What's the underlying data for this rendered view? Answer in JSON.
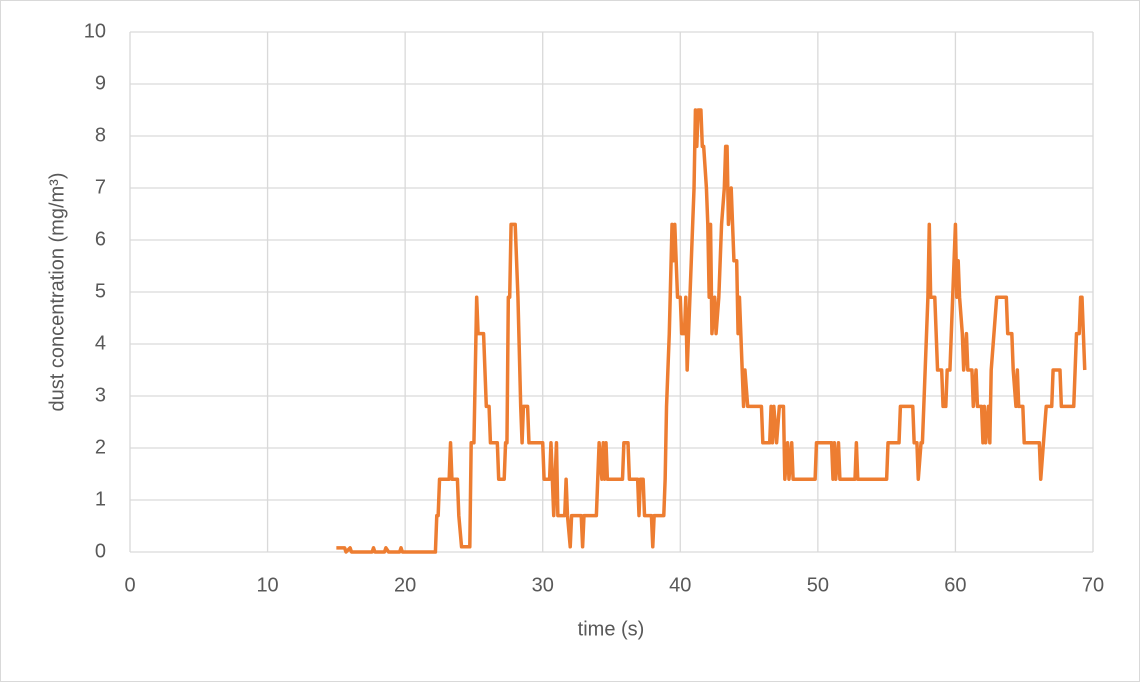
{
  "chart_data": {
    "type": "line",
    "xlabel": "time (s)",
    "ylabel": "dust concentration (mg/m³)",
    "xlim": [
      0,
      70
    ],
    "xticks": [
      0,
      10,
      20,
      30,
      40,
      50,
      60,
      70
    ],
    "ylim": [
      0,
      10
    ],
    "yticks": [
      0,
      1,
      2,
      3,
      4,
      5,
      6,
      7,
      8,
      9,
      10
    ],
    "grid": true,
    "x": [
      15.0,
      15.6,
      15.7,
      16.0,
      16.1,
      17.6,
      17.7,
      17.8,
      18.5,
      18.6,
      18.8,
      19.6,
      19.7,
      19.8,
      22.2,
      22.3,
      22.4,
      22.5,
      23.2,
      23.3,
      23.4,
      23.8,
      23.9,
      24.1,
      24.7,
      24.8,
      25.0,
      25.1,
      25.2,
      25.3,
      25.7,
      25.9,
      26.1,
      26.2,
      26.7,
      26.8,
      27.2,
      27.3,
      27.4,
      27.5,
      27.6,
      27.7,
      28.0,
      28.2,
      28.4,
      28.5,
      28.6,
      28.9,
      29.0,
      30.0,
      30.1,
      30.5,
      30.6,
      30.7,
      30.8,
      31.0,
      31.1,
      31.6,
      31.7,
      31.8,
      32.0,
      32.1,
      32.8,
      32.9,
      33.0,
      33.9,
      34.0,
      34.1,
      34.3,
      34.4,
      34.5,
      34.6,
      34.7,
      35.8,
      35.9,
      36.2,
      36.3,
      36.9,
      37.0,
      37.1,
      37.3,
      37.4,
      37.9,
      38.0,
      38.1,
      38.8,
      38.9,
      39.0,
      39.2,
      39.4,
      39.5,
      39.6,
      39.8,
      40.0,
      40.1,
      40.3,
      40.4,
      40.5,
      40.7,
      41.0,
      41.1,
      41.2,
      41.3,
      41.5,
      41.6,
      41.7,
      41.9,
      42.0,
      42.1,
      42.2,
      42.3,
      42.5,
      42.6,
      42.8,
      43.0,
      43.2,
      43.3,
      43.4,
      43.5,
      43.7,
      43.8,
      43.9,
      44.1,
      44.2,
      44.3,
      44.5,
      44.6,
      44.7,
      44.9,
      45.9,
      46.0,
      46.5,
      46.6,
      46.7,
      46.8,
      47.0,
      47.2,
      47.5,
      47.6,
      47.8,
      47.9,
      48.1,
      48.2,
      49.8,
      49.9,
      51.0,
      51.1,
      51.2,
      51.3,
      51.5,
      51.6,
      52.7,
      52.8,
      52.9,
      55.0,
      55.1,
      55.9,
      56.0,
      56.9,
      57.0,
      57.2,
      57.3,
      57.5,
      57.6,
      58.0,
      58.1,
      58.2,
      58.5,
      58.7,
      59.0,
      59.1,
      59.3,
      59.4,
      59.6,
      59.9,
      60.0,
      60.1,
      60.2,
      60.3,
      60.5,
      60.6,
      60.8,
      60.9,
      61.0,
      61.2,
      61.3,
      61.5,
      61.6,
      61.9,
      62.0,
      62.1,
      62.2,
      62.4,
      62.5,
      62.6,
      62.8,
      63.0,
      63.7,
      63.8,
      64.1,
      64.2,
      64.4,
      64.5,
      64.6,
      64.9,
      65.0,
      66.1,
      66.2,
      66.4,
      66.6,
      67.0,
      67.1,
      67.6,
      67.7,
      68.6,
      68.7,
      68.8,
      69.0,
      69.1,
      69.2,
      69.4
    ],
    "series": [
      {
        "color": "#ed7d31",
        "values": [
          0.08,
          0.08,
          0,
          0.08,
          0,
          0,
          0.08,
          0,
          0,
          0.08,
          0,
          0,
          0.08,
          0,
          0,
          0.7,
          0.7,
          1.4,
          1.4,
          2.1,
          1.4,
          1.4,
          0.7,
          0.1,
          0.1,
          2.1,
          2.1,
          3.5,
          4.9,
          4.2,
          4.2,
          2.8,
          2.8,
          2.1,
          2.1,
          1.4,
          1.4,
          2.1,
          2.1,
          4.9,
          4.9,
          6.3,
          6.3,
          4.9,
          2.8,
          2.1,
          2.8,
          2.8,
          2.1,
          2.1,
          1.4,
          1.4,
          2.1,
          1.4,
          0.7,
          2.1,
          0.7,
          0.7,
          1.4,
          0.7,
          0.1,
          0.7,
          0.7,
          0.1,
          0.7,
          0.7,
          1.4,
          2.1,
          1.4,
          2.1,
          1.4,
          2.1,
          1.4,
          1.4,
          2.1,
          2.1,
          1.4,
          1.4,
          0.7,
          1.4,
          1.4,
          0.7,
          0.7,
          0.1,
          0.7,
          0.7,
          1.4,
          2.8,
          4.2,
          6.3,
          5.6,
          6.3,
          4.9,
          4.9,
          4.2,
          4.2,
          4.9,
          3.5,
          4.9,
          7.0,
          8.5,
          7.8,
          8.5,
          8.5,
          7.8,
          7.8,
          7.0,
          6.3,
          4.9,
          6.3,
          4.2,
          4.9,
          4.2,
          4.9,
          6.3,
          7.0,
          7.8,
          7.8,
          6.3,
          7.0,
          6.3,
          5.6,
          5.6,
          4.2,
          4.9,
          3.5,
          2.8,
          3.5,
          2.8,
          2.8,
          2.1,
          2.1,
          2.8,
          2.1,
          2.8,
          2.1,
          2.8,
          2.8,
          1.4,
          2.1,
          1.4,
          2.1,
          1.4,
          1.4,
          2.1,
          2.1,
          1.4,
          2.1,
          1.4,
          2.1,
          1.4,
          1.4,
          2.1,
          1.4,
          1.4,
          2.1,
          2.1,
          2.8,
          2.8,
          2.1,
          2.1,
          1.4,
          2.1,
          2.1,
          4.9,
          6.3,
          4.9,
          4.9,
          3.5,
          3.5,
          2.8,
          2.8,
          3.5,
          3.5,
          5.6,
          6.3,
          4.9,
          5.6,
          4.9,
          4.2,
          3.5,
          4.2,
          3.5,
          3.5,
          3.5,
          2.8,
          3.5,
          2.8,
          2.8,
          2.1,
          2.8,
          2.1,
          2.8,
          2.1,
          3.5,
          4.2,
          4.9,
          4.9,
          4.2,
          4.2,
          3.5,
          2.8,
          3.5,
          2.8,
          2.8,
          2.1,
          2.1,
          1.4,
          2.1,
          2.8,
          2.8,
          3.5,
          3.5,
          2.8,
          2.8,
          3.5,
          4.2,
          4.2,
          4.9,
          4.9,
          3.5
        ]
      }
    ]
  }
}
